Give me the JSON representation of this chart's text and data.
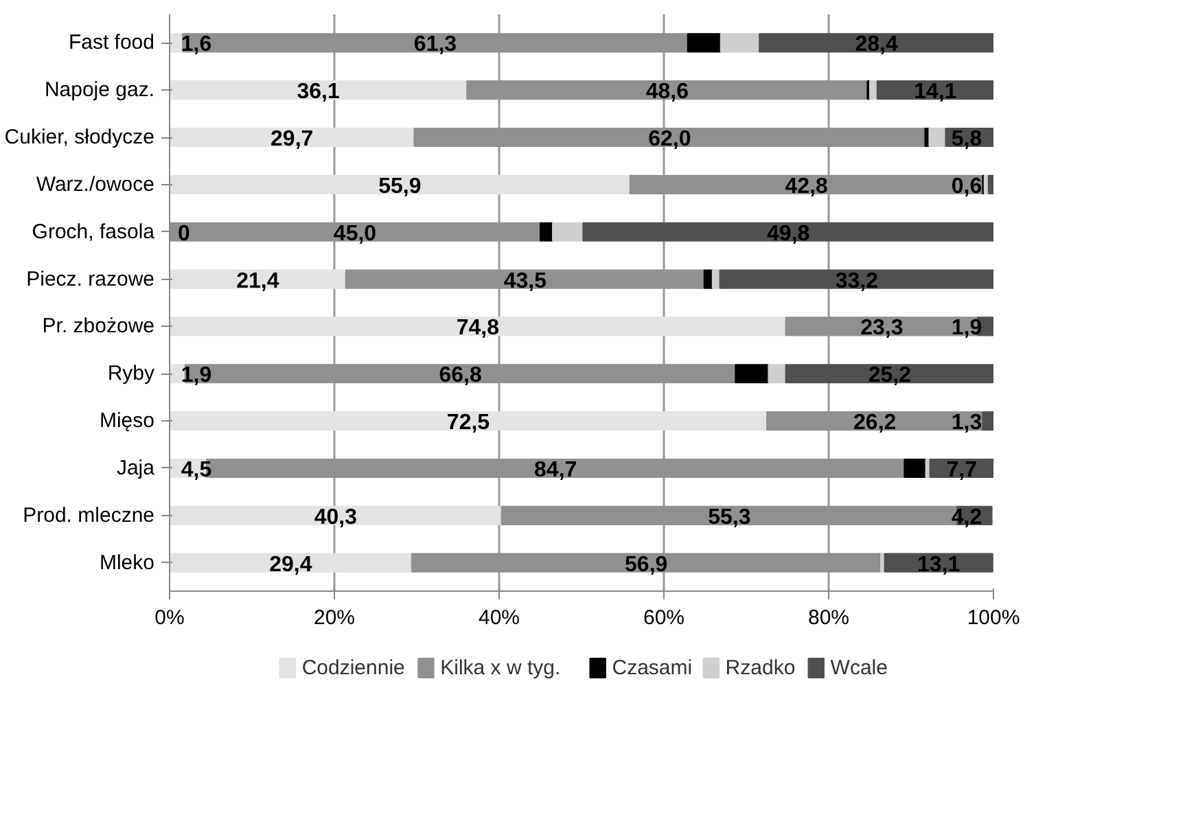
{
  "chart_data": {
    "type": "bar",
    "orientation": "horizontal",
    "stacked": true,
    "categories": [
      "Fast food",
      "Napoje gaz.",
      "Cukier, słodycze",
      "Warz./owoce",
      "Groch, fasola",
      "Piecz. razowe",
      "Pr. zbożowe",
      "Ryby",
      "Mięso",
      "Jaja",
      "Prod. mleczne",
      "Mleko"
    ],
    "series": [
      {
        "name": "Codziennie",
        "color": "#e3e3e3",
        "values": [
          1.6,
          36.1,
          29.7,
          55.9,
          0,
          21.4,
          74.8,
          1.9,
          72.5,
          4.5,
          40.3,
          29.4
        ],
        "value_labels": [
          "1,6",
          "36,1",
          "29,7",
          "55,9",
          "0",
          "21,4",
          "74,8",
          "1,9",
          "72,5",
          "4,5",
          "40,3",
          "29,4"
        ]
      },
      {
        "name": "Kilka x w tyg.",
        "color": "#909090",
        "values": [
          61.3,
          48.6,
          62.0,
          42.8,
          45.0,
          43.5,
          23.3,
          66.8,
          26.2,
          84.7,
          55.3,
          56.9
        ],
        "value_labels": [
          "61,3",
          "48,6",
          "62,0",
          "42,8",
          "45,0",
          "43,5",
          "23,3",
          "66,8",
          "26,2",
          "84,7",
          "55,3",
          "56,9"
        ]
      },
      {
        "name": "Czasami",
        "color": "#000000",
        "values": [
          4.0,
          0.3,
          0.5,
          0.2,
          1.5,
          1.0,
          0,
          4.0,
          0,
          2.6,
          0,
          null
        ]
      },
      {
        "name": "Rzadko",
        "color": "#cfcfcf",
        "values": [
          4.7,
          0.9,
          2.0,
          0.5,
          3.7,
          0.9,
          0,
          2.1,
          0,
          0.5,
          null,
          0.5
        ]
      },
      {
        "name": "Wcale",
        "color": "#505050",
        "values": [
          28.4,
          14.1,
          5.8,
          0.6,
          49.8,
          33.2,
          1.9,
          25.2,
          1.3,
          7.7,
          4.2,
          13.1
        ],
        "value_labels": [
          "28,4",
          "14,1",
          "5,8",
          "0,6",
          "49,8",
          "33,2",
          "1,9",
          "25,2",
          "1,3",
          "7,7",
          "4,2",
          "13,1"
        ]
      }
    ],
    "xlim": [
      0,
      100
    ],
    "xticks": [
      {
        "value": 0,
        "label": "0%"
      },
      {
        "value": 20,
        "label": "20%"
      },
      {
        "value": 40,
        "label": "40%"
      },
      {
        "value": 60,
        "label": "60%"
      },
      {
        "value": 80,
        "label": "80%"
      },
      {
        "value": 100,
        "label": "100%"
      }
    ],
    "grid": "x",
    "legend": "bottom"
  }
}
